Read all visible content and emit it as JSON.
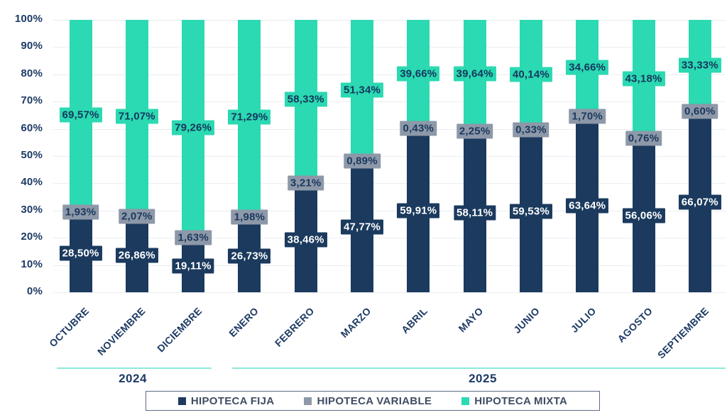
{
  "chart_data": {
    "type": "bar",
    "variant": "stacked-100-percent-column",
    "title": "",
    "categories": [
      "OCTUBRE",
      "NOVIEMBRE",
      "DICIEMBRE",
      "ENERO",
      "FEBRERO",
      "MARZO",
      "ABRIL",
      "MAYO",
      "JUNIO",
      "JULIO",
      "AGOSTO",
      "SEPTIEMBRE"
    ],
    "year_groups": [
      {
        "label": "2024",
        "first_month_index": 0,
        "last_month_index": 2
      },
      {
        "label": "2025",
        "first_month_index": 3,
        "last_month_index": 11
      }
    ],
    "y_axis": {
      "min": 0,
      "max": 100,
      "grid": true,
      "ticks": [
        "0%",
        "10%",
        "20%",
        "30%",
        "40%",
        "50%",
        "60%",
        "70%",
        "80%",
        "90%",
        "100%"
      ]
    },
    "series": [
      {
        "name": "HIPOTECA FIJA",
        "color": "#1b3a5e",
        "label_text_color": "#ffffff",
        "values": [
          28.5,
          26.86,
          19.11,
          26.73,
          38.46,
          47.77,
          59.91,
          58.11,
          59.53,
          63.64,
          56.06,
          66.07
        ],
        "labels": [
          "28,50%",
          "26,86%",
          "19,11%",
          "26,73%",
          "38,46%",
          "47,77%",
          "59,91%",
          "58,11%",
          "59,53%",
          "63,64%",
          "56,06%",
          "66,07%"
        ]
      },
      {
        "name": "HIPOTECA VARIABLE",
        "color": "#8d98a8",
        "label_text_color": "#1b3a5e",
        "values": [
          1.93,
          2.07,
          1.63,
          1.98,
          3.21,
          0.89,
          0.43,
          2.25,
          0.33,
          1.7,
          0.76,
          0.6
        ],
        "labels": [
          "1,93%",
          "2,07%",
          "1,63%",
          "1,98%",
          "3,21%",
          "0,89%",
          "0,43%",
          "2,25%",
          "0,33%",
          "1,70%",
          "0,76%",
          "0,60%"
        ]
      },
      {
        "name": "HIPOTECA MIXTA",
        "color": "#2bd9b2",
        "label_text_color": "#16365c",
        "values": [
          69.57,
          71.07,
          79.26,
          71.29,
          58.33,
          51.34,
          39.66,
          39.64,
          40.14,
          34.66,
          43.18,
          33.33
        ],
        "labels": [
          "69,57%",
          "71,07%",
          "79,26%",
          "71,29%",
          "58,33%",
          "51,34%",
          "39,66%",
          "39,64%",
          "40,14%",
          "34,66%",
          "43,18%",
          "33,33%"
        ]
      }
    ],
    "legend": {
      "position": "bottom",
      "items": [
        "HIPOTECA FIJA",
        "HIPOTECA VARIABLE",
        "HIPOTECA MIXTA"
      ]
    },
    "colors": {
      "axis_text": "#1d3a64",
      "grid": "#ebedf0",
      "year_line": "#8beada",
      "legend_text": "#3f4d63",
      "legend_border": "#5c6b83",
      "background": "#ffffff"
    }
  }
}
